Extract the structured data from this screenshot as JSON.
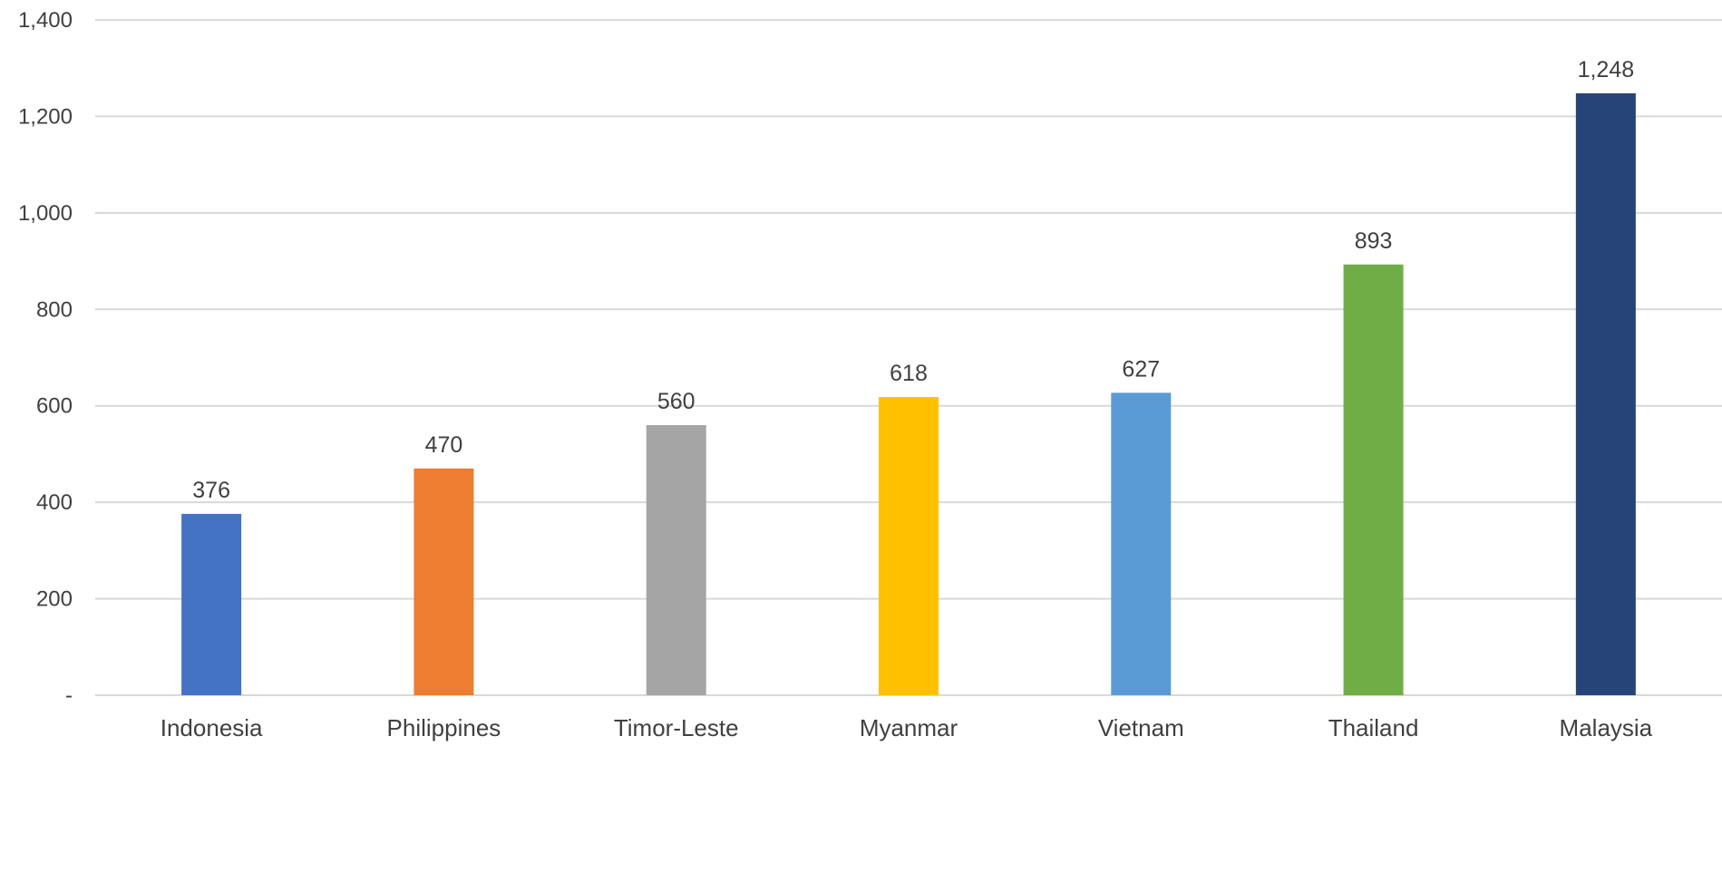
{
  "chart_data": {
    "type": "bar",
    "title": "",
    "xlabel": "",
    "ylabel": "",
    "categories": [
      "Indonesia",
      "Philippines",
      "Timor-Leste",
      "Myanmar",
      "Vietnam",
      "Thailand",
      "Malaysia"
    ],
    "values": [
      376,
      470,
      560,
      618,
      627,
      893,
      1248
    ],
    "value_labels": [
      "376",
      "470",
      "560",
      "618",
      "627",
      "893",
      "1,248"
    ],
    "colors": [
      "#4472c4",
      "#ed7d31",
      "#a5a5a5",
      "#ffc000",
      "#5b9bd5",
      "#70ad47",
      "#264478"
    ],
    "ylim": [
      0,
      1400
    ],
    "yticks": [
      0,
      200,
      400,
      600,
      800,
      1000,
      1200,
      1400
    ],
    "ytick_labels": [
      "-",
      "200",
      "400",
      "600",
      "800",
      "1,000",
      "1,200",
      "1,400"
    ],
    "grid": true,
    "legend": false
  }
}
